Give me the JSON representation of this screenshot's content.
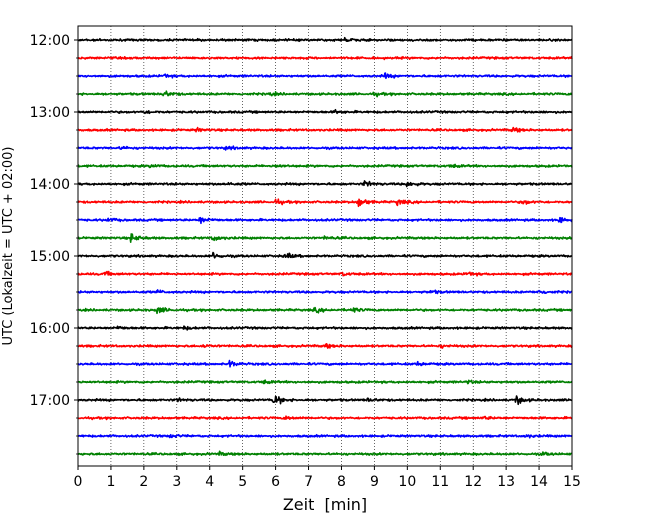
{
  "chart_data": {
    "type": "line",
    "title": "",
    "xlabel": "Zeit  [min]",
    "ylabel": "UTC (Lokalzeit = UTC + 02:00)",
    "xlim": [
      0,
      15
    ],
    "x_ticks": [
      0,
      1,
      2,
      3,
      4,
      5,
      6,
      7,
      8,
      9,
      10,
      11,
      12,
      13,
      14,
      15
    ],
    "y_tick_labels": [
      "12:00",
      "13:00",
      "14:00",
      "15:00",
      "16:00",
      "17:00"
    ],
    "grid": "vertical dotted",
    "legend": "none",
    "colors": [
      "#000000",
      "#ff0000",
      "#0000ff",
      "#008000"
    ],
    "series": [
      {
        "start": "12:00",
        "color": "#000000",
        "events": [
          [
            8.1,
            0.3
          ]
        ]
      },
      {
        "start": "12:15",
        "color": "#ff0000",
        "events": []
      },
      {
        "start": "12:30",
        "color": "#0000ff",
        "events": [
          [
            9.3,
            0.35
          ],
          [
            2.6,
            0.2
          ]
        ]
      },
      {
        "start": "12:45",
        "color": "#008000",
        "events": [
          [
            2.6,
            0.45
          ],
          [
            5.8,
            0.2
          ],
          [
            9.0,
            0.2
          ]
        ]
      },
      {
        "start": "13:00",
        "color": "#000000",
        "events": [
          [
            2.0,
            0.2
          ],
          [
            7.8,
            0.2
          ]
        ]
      },
      {
        "start": "13:15",
        "color": "#ff0000",
        "events": [
          [
            3.6,
            0.2
          ],
          [
            13.2,
            0.35
          ]
        ]
      },
      {
        "start": "13:30",
        "color": "#0000ff",
        "events": [
          [
            1.3,
            0.2
          ],
          [
            4.5,
            0.2
          ]
        ]
      },
      {
        "start": "13:45",
        "color": "#008000",
        "events": [
          [
            2.2,
            0.2
          ],
          [
            6.0,
            0.2
          ],
          [
            11.3,
            0.2
          ]
        ]
      },
      {
        "start": "14:00",
        "color": "#000000",
        "events": [
          [
            8.7,
            0.4
          ],
          [
            10.0,
            0.45
          ],
          [
            4.5,
            0.2
          ]
        ]
      },
      {
        "start": "14:15",
        "color": "#ff0000",
        "events": [
          [
            6.0,
            0.35
          ],
          [
            8.5,
            0.8
          ],
          [
            9.7,
            0.4
          ],
          [
            13.5,
            0.35
          ]
        ]
      },
      {
        "start": "14:30",
        "color": "#0000ff",
        "events": [
          [
            3.7,
            0.5
          ],
          [
            14.6,
            0.4
          ],
          [
            0.9,
            0.25
          ]
        ]
      },
      {
        "start": "14:45",
        "color": "#008000",
        "events": [
          [
            1.6,
            0.6
          ],
          [
            4.1,
            0.4
          ],
          [
            7.5,
            0.2
          ]
        ]
      },
      {
        "start": "15:00",
        "color": "#000000",
        "events": [
          [
            4.1,
            0.4
          ],
          [
            6.3,
            0.4
          ]
        ]
      },
      {
        "start": "15:15",
        "color": "#ff0000",
        "events": [
          [
            0.8,
            0.3
          ],
          [
            8.0,
            0.25
          ],
          [
            11.8,
            0.25
          ]
        ]
      },
      {
        "start": "15:30",
        "color": "#0000ff",
        "events": [
          [
            14.0,
            0.35
          ],
          [
            2.4,
            0.2
          ],
          [
            10.7,
            0.2
          ]
        ]
      },
      {
        "start": "15:45",
        "color": "#008000",
        "events": [
          [
            2.4,
            0.5
          ],
          [
            7.2,
            0.3
          ],
          [
            8.3,
            0.35
          ]
        ]
      },
      {
        "start": "16:00",
        "color": "#000000",
        "events": [
          [
            1.2,
            0.2
          ],
          [
            3.2,
            0.2
          ]
        ]
      },
      {
        "start": "16:15",
        "color": "#ff0000",
        "events": [
          [
            7.5,
            0.3
          ],
          [
            3.8,
            0.2
          ],
          [
            11.0,
            0.2
          ]
        ]
      },
      {
        "start": "16:30",
        "color": "#0000ff",
        "events": [
          [
            4.6,
            0.4
          ],
          [
            10.3,
            0.25
          ]
        ]
      },
      {
        "start": "16:45",
        "color": "#008000",
        "events": [
          [
            5.6,
            0.2
          ],
          [
            11.8,
            0.2
          ]
        ]
      },
      {
        "start": "17:00",
        "color": "#000000",
        "events": [
          [
            5.95,
            0.8
          ],
          [
            13.3,
            0.6
          ],
          [
            3.0,
            0.2
          ],
          [
            8.8,
            0.2
          ]
        ]
      },
      {
        "start": "17:15",
        "color": "#ff0000",
        "events": [
          [
            6.3,
            0.25
          ],
          [
            12.3,
            0.2
          ]
        ]
      },
      {
        "start": "17:30",
        "color": "#0000ff",
        "events": [
          [
            2.8,
            0.2
          ],
          [
            13.6,
            0.2
          ]
        ]
      },
      {
        "start": "17:45",
        "color": "#008000",
        "events": [
          [
            4.3,
            0.2
          ],
          [
            14.1,
            0.2
          ]
        ]
      }
    ]
  }
}
